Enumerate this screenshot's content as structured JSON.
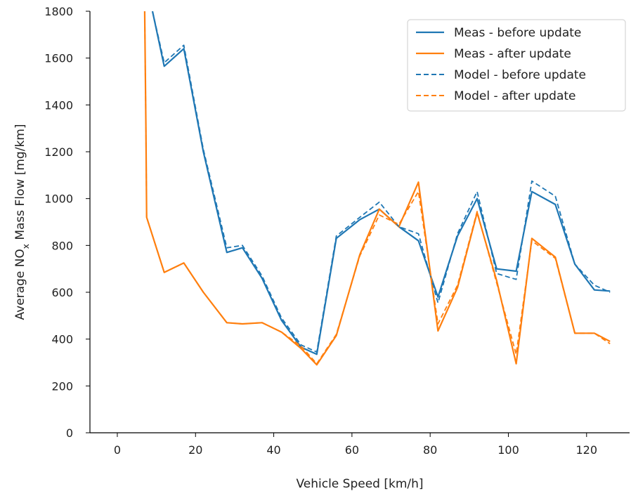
{
  "chart_data": {
    "type": "line",
    "xlabel": "Vehicle Speed [km/h]",
    "ylabel_parts": {
      "before": "Average NO",
      "sub": "x",
      "after": " Mass Flow [mg/km]"
    },
    "xlim": [
      -7,
      131
    ],
    "ylim": [
      0,
      1800
    ],
    "xticks": [
      0,
      20,
      40,
      60,
      80,
      100,
      120
    ],
    "yticks": [
      0,
      200,
      400,
      600,
      800,
      1000,
      1200,
      1400,
      1600,
      1800
    ],
    "grid": false,
    "legend_position": "top-right",
    "series": [
      {
        "name": "Meas - before update",
        "color": "#1f77b4",
        "dash": "solid",
        "points": [
          [
            9,
            1800
          ],
          [
            12,
            1565
          ],
          [
            17,
            1640
          ],
          [
            22,
            1200
          ],
          [
            28,
            770
          ],
          [
            32,
            790
          ],
          [
            37,
            660
          ],
          [
            42,
            480
          ],
          [
            47,
            365
          ],
          [
            51,
            335
          ],
          [
            56,
            830
          ],
          [
            62,
            910
          ],
          [
            67,
            955
          ],
          [
            72,
            880
          ],
          [
            77,
            820
          ],
          [
            82,
            580
          ],
          [
            87,
            840
          ],
          [
            92,
            1000
          ],
          [
            97,
            700
          ],
          [
            102,
            690
          ],
          [
            106,
            1030
          ],
          [
            112,
            975
          ],
          [
            117,
            720
          ],
          [
            122,
            610
          ],
          [
            126,
            605
          ]
        ]
      },
      {
        "name": "Meas - after update",
        "color": "#ff7f0e",
        "dash": "solid",
        "points": [
          [
            7,
            1800
          ],
          [
            7.3,
            1320
          ],
          [
            7.5,
            920
          ],
          [
            12,
            685
          ],
          [
            17,
            725
          ],
          [
            22,
            600
          ],
          [
            28,
            470
          ],
          [
            32,
            465
          ],
          [
            37,
            470
          ],
          [
            42,
            430
          ],
          [
            47,
            360
          ],
          [
            51,
            290
          ],
          [
            56,
            415
          ],
          [
            62,
            760
          ],
          [
            67,
            955
          ],
          [
            72,
            880
          ],
          [
            77,
            1070
          ],
          [
            82,
            435
          ],
          [
            87,
            620
          ],
          [
            92,
            940
          ],
          [
            97,
            650
          ],
          [
            102,
            295
          ],
          [
            106,
            830
          ],
          [
            112,
            750
          ],
          [
            117,
            425
          ],
          [
            122,
            425
          ],
          [
            126,
            390
          ]
        ]
      },
      {
        "name": "Model - before update",
        "color": "#1f77b4",
        "dash": "dashed",
        "points": [
          [
            9,
            1800
          ],
          [
            12,
            1580
          ],
          [
            17,
            1655
          ],
          [
            22,
            1210
          ],
          [
            28,
            790
          ],
          [
            32,
            800
          ],
          [
            37,
            670
          ],
          [
            42,
            490
          ],
          [
            47,
            375
          ],
          [
            51,
            345
          ],
          [
            56,
            840
          ],
          [
            62,
            920
          ],
          [
            67,
            985
          ],
          [
            72,
            880
          ],
          [
            77,
            850
          ],
          [
            82,
            555
          ],
          [
            87,
            850
          ],
          [
            92,
            1030
          ],
          [
            97,
            680
          ],
          [
            102,
            655
          ],
          [
            106,
            1075
          ],
          [
            112,
            1010
          ],
          [
            117,
            720
          ],
          [
            122,
            630
          ],
          [
            126,
            600
          ]
        ]
      },
      {
        "name": "Model - after update",
        "color": "#ff7f0e",
        "dash": "dashed",
        "points": [
          [
            7,
            1800
          ],
          [
            7.3,
            1320
          ],
          [
            7.5,
            920
          ],
          [
            12,
            685
          ],
          [
            17,
            725
          ],
          [
            22,
            600
          ],
          [
            28,
            470
          ],
          [
            32,
            465
          ],
          [
            37,
            470
          ],
          [
            42,
            430
          ],
          [
            47,
            370
          ],
          [
            51,
            295
          ],
          [
            56,
            420
          ],
          [
            62,
            755
          ],
          [
            67,
            930
          ],
          [
            72,
            890
          ],
          [
            77,
            1030
          ],
          [
            82,
            465
          ],
          [
            87,
            630
          ],
          [
            92,
            945
          ],
          [
            97,
            640
          ],
          [
            102,
            335
          ],
          [
            106,
            820
          ],
          [
            112,
            745
          ],
          [
            117,
            425
          ],
          [
            122,
            425
          ],
          [
            126,
            380
          ]
        ]
      }
    ]
  }
}
